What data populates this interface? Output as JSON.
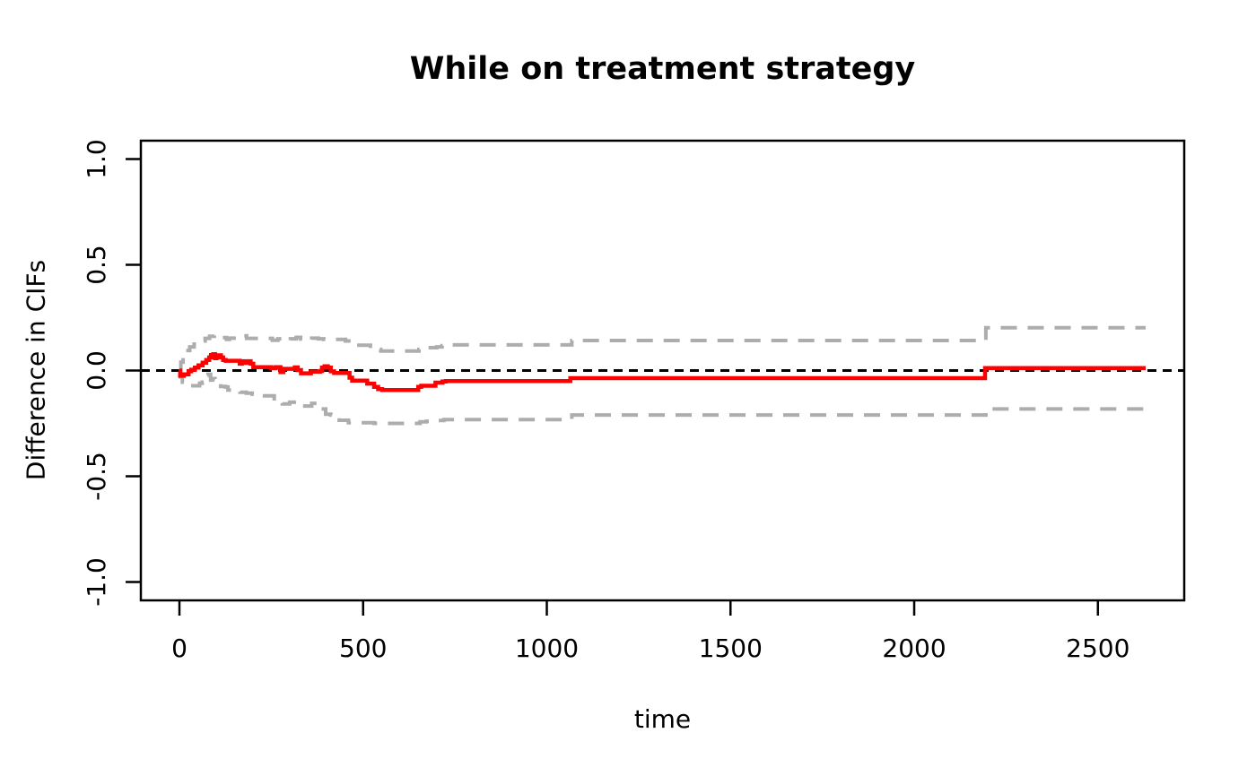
{
  "figure": {
    "background": "#FFFFFF"
  },
  "chart_data": {
    "type": "line",
    "title": "While on treatment strategy",
    "xlabel": "time",
    "ylabel": "Difference in CIFs",
    "xlim": [
      -105,
      2735
    ],
    "ylim": [
      -1.087,
      1.087
    ],
    "x_ticks": [
      0,
      500,
      1000,
      1500,
      2000,
      2500
    ],
    "x_tick_labels": [
      "0",
      "500",
      "1000",
      "1500",
      "2000",
      "2500"
    ],
    "y_ticks": [
      -1.0,
      -0.5,
      0.0,
      0.5,
      1.0
    ],
    "y_tick_labels": [
      "-1.0",
      "-0.5",
      "0.0",
      "0.5",
      "1.0"
    ],
    "grid": false,
    "legend": null,
    "colors": {
      "difference_line": "#FF0000",
      "confidence_band": "#ADADAD",
      "reference_line": "#000000",
      "axis": "#000000"
    },
    "reference_line": {
      "y": 0.0,
      "style": "dashed"
    },
    "series": [
      {
        "name": "difference-in-cifs",
        "color": "#FF0000",
        "style": "solid",
        "width": 4.5,
        "step": true,
        "points": [
          [
            0,
            0
          ],
          [
            2,
            -0.025
          ],
          [
            12,
            -0.018
          ],
          [
            25,
            -0.004
          ],
          [
            32,
            0.004
          ],
          [
            42,
            0.014
          ],
          [
            52,
            0.024
          ],
          [
            63,
            0.037
          ],
          [
            73,
            0.05
          ],
          [
            81,
            0.062
          ],
          [
            86,
            0.073
          ],
          [
            92,
            0.077
          ],
          [
            97,
            0.058
          ],
          [
            101,
            0.063
          ],
          [
            106,
            0.072
          ],
          [
            113,
            0.062
          ],
          [
            119,
            0.05
          ],
          [
            126,
            0.046
          ],
          [
            158,
            0.046
          ],
          [
            164,
            0.032
          ],
          [
            170,
            0.044
          ],
          [
            179,
            0.036
          ],
          [
            186,
            0.044
          ],
          [
            194,
            0.032
          ],
          [
            201,
            0.016
          ],
          [
            243,
            0.016
          ],
          [
            250,
            0.011
          ],
          [
            262,
            0.016
          ],
          [
            275,
            -0.007
          ],
          [
            283,
            0.008
          ],
          [
            308,
            0.008
          ],
          [
            314,
            0.015
          ],
          [
            322,
            0.002
          ],
          [
            331,
            -0.013
          ],
          [
            352,
            -0.013
          ],
          [
            358,
            -0.005
          ],
          [
            383,
            -0.002
          ],
          [
            388,
            0.014
          ],
          [
            395,
            0.02
          ],
          [
            404,
            0.014
          ],
          [
            412,
            -0.004
          ],
          [
            421,
            -0.012
          ],
          [
            456,
            -0.012
          ],
          [
            463,
            -0.034
          ],
          [
            470,
            -0.048
          ],
          [
            503,
            -0.048
          ],
          [
            511,
            -0.062
          ],
          [
            530,
            -0.077
          ],
          [
            541,
            -0.088
          ],
          [
            552,
            -0.092
          ],
          [
            640,
            -0.092
          ],
          [
            650,
            -0.077
          ],
          [
            658,
            -0.072
          ],
          [
            690,
            -0.072
          ],
          [
            697,
            -0.057
          ],
          [
            716,
            -0.052
          ],
          [
            725,
            -0.05
          ],
          [
            1056,
            -0.05
          ],
          [
            1064,
            -0.036
          ],
          [
            2185,
            -0.036
          ],
          [
            2193,
            0.012
          ],
          [
            2630,
            0.012
          ]
        ]
      },
      {
        "name": "upper-confidence-bound",
        "color": "#ADADAD",
        "style": "dashed",
        "width": 4,
        "step": true,
        "points": [
          [
            0,
            0
          ],
          [
            4,
            0.04
          ],
          [
            10,
            0.07
          ],
          [
            18,
            0.095
          ],
          [
            28,
            0.112
          ],
          [
            40,
            0.125
          ],
          [
            55,
            0.14
          ],
          [
            70,
            0.152
          ],
          [
            82,
            0.162
          ],
          [
            95,
            0.166
          ],
          [
            103,
            0.156
          ],
          [
            120,
            0.156
          ],
          [
            128,
            0.147
          ],
          [
            136,
            0.153
          ],
          [
            158,
            0.153
          ],
          [
            164,
            0.164
          ],
          [
            176,
            0.164
          ],
          [
            183,
            0.152
          ],
          [
            245,
            0.152
          ],
          [
            253,
            0.143
          ],
          [
            268,
            0.15
          ],
          [
            290,
            0.143
          ],
          [
            302,
            0.15
          ],
          [
            318,
            0.157
          ],
          [
            330,
            0.149
          ],
          [
            352,
            0.145
          ],
          [
            360,
            0.153
          ],
          [
            378,
            0.15
          ],
          [
            393,
            0.147
          ],
          [
            440,
            0.147
          ],
          [
            452,
            0.14
          ],
          [
            467,
            0.128
          ],
          [
            482,
            0.12
          ],
          [
            520,
            0.115
          ],
          [
            532,
            0.1
          ],
          [
            548,
            0.092
          ],
          [
            640,
            0.092
          ],
          [
            652,
            0.1
          ],
          [
            668,
            0.108
          ],
          [
            700,
            0.112
          ],
          [
            715,
            0.118
          ],
          [
            730,
            0.121
          ],
          [
            1056,
            0.121
          ],
          [
            1068,
            0.142
          ],
          [
            2180,
            0.142
          ],
          [
            2195,
            0.202
          ],
          [
            2630,
            0.202
          ]
        ]
      },
      {
        "name": "lower-confidence-bound",
        "color": "#ADADAD",
        "style": "dashed",
        "width": 4,
        "step": true,
        "points": [
          [
            0,
            0
          ],
          [
            3,
            -0.03
          ],
          [
            8,
            -0.055
          ],
          [
            14,
            -0.068
          ],
          [
            20,
            -0.072
          ],
          [
            48,
            -0.072
          ],
          [
            55,
            -0.06
          ],
          [
            62,
            -0.055
          ],
          [
            68,
            -0.022
          ],
          [
            78,
            -0.018
          ],
          [
            85,
            -0.045
          ],
          [
            90,
            -0.038
          ],
          [
            97,
            -0.05
          ],
          [
            105,
            -0.065
          ],
          [
            112,
            -0.075
          ],
          [
            125,
            -0.078
          ],
          [
            132,
            -0.092
          ],
          [
            158,
            -0.095
          ],
          [
            165,
            -0.103
          ],
          [
            182,
            -0.107
          ],
          [
            198,
            -0.112
          ],
          [
            205,
            -0.12
          ],
          [
            250,
            -0.12
          ],
          [
            258,
            -0.148
          ],
          [
            270,
            -0.152
          ],
          [
            280,
            -0.158
          ],
          [
            300,
            -0.15
          ],
          [
            326,
            -0.15
          ],
          [
            333,
            -0.168
          ],
          [
            352,
            -0.168
          ],
          [
            360,
            -0.155
          ],
          [
            372,
            -0.155
          ],
          [
            380,
            -0.182
          ],
          [
            392,
            -0.182
          ],
          [
            398,
            -0.207
          ],
          [
            412,
            -0.21
          ],
          [
            420,
            -0.225
          ],
          [
            435,
            -0.235
          ],
          [
            460,
            -0.247
          ],
          [
            530,
            -0.25
          ],
          [
            640,
            -0.25
          ],
          [
            655,
            -0.243
          ],
          [
            672,
            -0.24
          ],
          [
            700,
            -0.236
          ],
          [
            720,
            -0.232
          ],
          [
            1056,
            -0.232
          ],
          [
            1068,
            -0.21
          ],
          [
            2180,
            -0.21
          ],
          [
            2195,
            -0.182
          ],
          [
            2630,
            -0.182
          ]
        ]
      }
    ]
  }
}
